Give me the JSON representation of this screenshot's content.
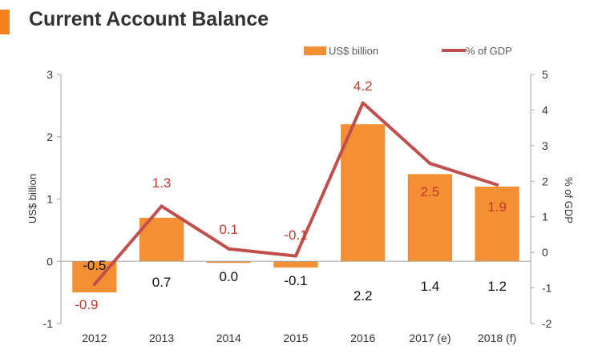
{
  "title": "Current Account Balance",
  "colors": {
    "accent": "#F58220",
    "bar": "#F58F33",
    "line": "#C0504D",
    "line_label": "#C0392B",
    "text": "#333333",
    "axis": "#A6A6A6"
  },
  "chart_data": {
    "type": "bar",
    "categories": [
      "2012",
      "2013",
      "2014",
      "2015",
      "2016",
      "2017 (e)",
      "2018 (f)"
    ],
    "series": [
      {
        "name": "US$ billion",
        "type": "bar",
        "axis": "left",
        "values": [
          -0.5,
          0.7,
          0.0,
          -0.1,
          2.2,
          1.4,
          1.2
        ],
        "labels": [
          "-0.5",
          "0.7",
          "0.0",
          "-0.1",
          "2.2",
          "1.4",
          "1.2"
        ]
      },
      {
        "name": "% of GDP",
        "type": "line",
        "axis": "right",
        "values": [
          -0.9,
          1.3,
          0.1,
          -0.1,
          4.2,
          2.5,
          1.9
        ],
        "labels": [
          "-0.9",
          "1.3",
          "0.1",
          "-0.1",
          "4.2",
          "2.5",
          "1.9"
        ]
      }
    ],
    "ylabel": "US$ billion",
    "y2label": "% of GDP",
    "ylim": [
      -1,
      3
    ],
    "y2lim": [
      -2,
      5
    ],
    "yticks": [
      "-1",
      "0",
      "1",
      "2",
      "3"
    ],
    "y2ticks": [
      "-2",
      "-1",
      "0",
      "1",
      "2",
      "3",
      "4",
      "5"
    ],
    "legend_position": "top-right",
    "grid": false
  }
}
